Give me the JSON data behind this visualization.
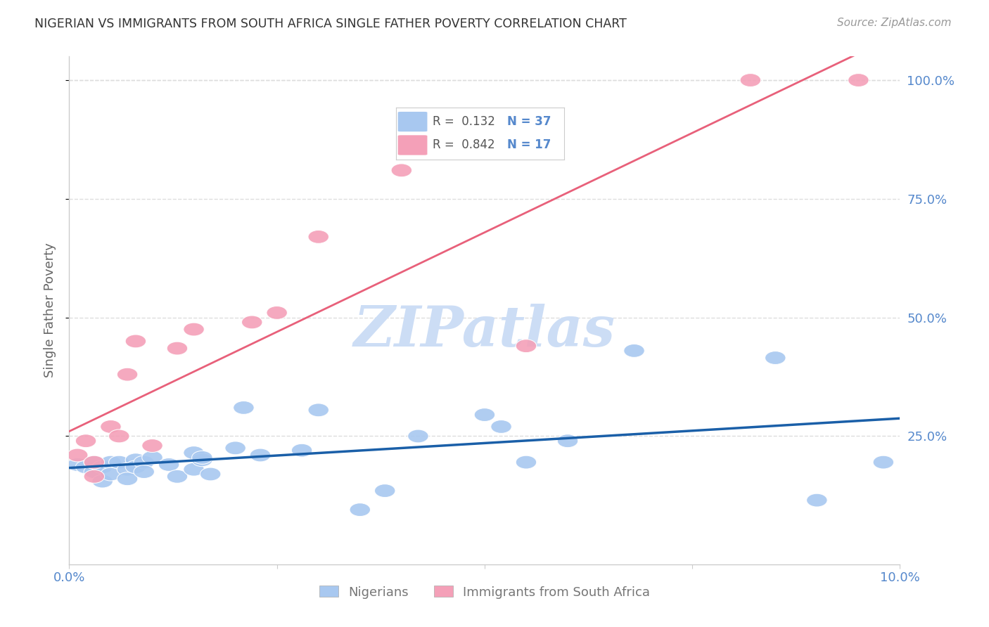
{
  "title": "NIGERIAN VS IMMIGRANTS FROM SOUTH AFRICA SINGLE FATHER POVERTY CORRELATION CHART",
  "source": "Source: ZipAtlas.com",
  "ylabel": "Single Father Poverty",
  "watermark": "ZIPatlas",
  "xlim": [
    0.0,
    0.1
  ],
  "ylim": [
    -0.02,
    1.05
  ],
  "ytick_labels_right": [
    "100.0%",
    "75.0%",
    "50.0%",
    "25.0%"
  ],
  "ytick_positions_right": [
    1.0,
    0.75,
    0.5,
    0.25
  ],
  "blue_line_color": "#1a5fa8",
  "pink_line_color": "#e8607a",
  "blue_scatter_color": "#a8c8f0",
  "pink_scatter_color": "#f4a0b8",
  "title_color": "#333333",
  "source_color": "#999999",
  "right_axis_color": "#5588cc",
  "grid_color": "#dddddd",
  "watermark_color": "#ccddf5",
  "nigerians_x": [
    0.001,
    0.002,
    0.003,
    0.003,
    0.004,
    0.004,
    0.005,
    0.005,
    0.006,
    0.007,
    0.007,
    0.008,
    0.008,
    0.009,
    0.009,
    0.01,
    0.012,
    0.013,
    0.015,
    0.015,
    0.016,
    0.016,
    0.017,
    0.02,
    0.021,
    0.023,
    0.028,
    0.03,
    0.035,
    0.038,
    0.042,
    0.05,
    0.052,
    0.055,
    0.06,
    0.068,
    0.085,
    0.09,
    0.098
  ],
  "nigerians_y": [
    0.19,
    0.185,
    0.175,
    0.195,
    0.185,
    0.155,
    0.195,
    0.17,
    0.195,
    0.18,
    0.16,
    0.2,
    0.185,
    0.195,
    0.175,
    0.205,
    0.19,
    0.165,
    0.215,
    0.18,
    0.2,
    0.205,
    0.17,
    0.225,
    0.31,
    0.21,
    0.22,
    0.305,
    0.095,
    0.135,
    0.25,
    0.295,
    0.27,
    0.195,
    0.24,
    0.43,
    0.415,
    0.115,
    0.195
  ],
  "sa_x": [
    0.001,
    0.002,
    0.003,
    0.003,
    0.005,
    0.006,
    0.007,
    0.008,
    0.01,
    0.013,
    0.015,
    0.022,
    0.025,
    0.03,
    0.04,
    0.055,
    0.082,
    0.095
  ],
  "sa_y": [
    0.21,
    0.24,
    0.165,
    0.195,
    0.27,
    0.25,
    0.38,
    0.45,
    0.23,
    0.435,
    0.475,
    0.49,
    0.51,
    0.67,
    0.81,
    0.44,
    1.0,
    1.0
  ]
}
